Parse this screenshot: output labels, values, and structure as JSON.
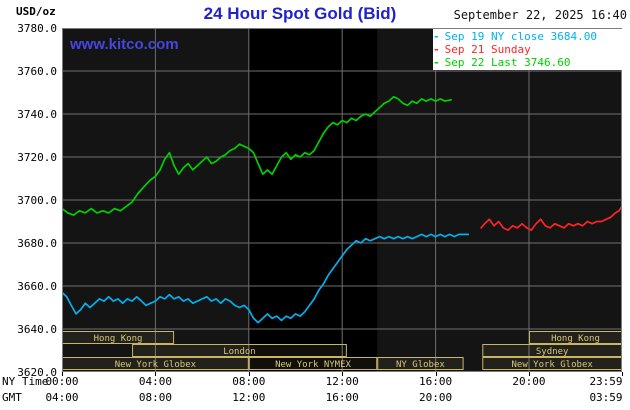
{
  "header": {
    "unit_label": "USD/oz",
    "title": "24 Hour Spot Gold (Bid)",
    "timestamp": "September 22, 2025 16:40"
  },
  "watermark": "www.kitco.com",
  "axes": {
    "ny_time_label": "NY Time",
    "gmt_label": "GMT"
  },
  "colors": {
    "outer_bg": "#ffffff",
    "title_blue": "#2222cc",
    "watermark_blue": "#4646e0",
    "plot_bg": "#141414",
    "nymex_band": "#000000",
    "grid": "#6f6f6f",
    "border": "#7d7d7d",
    "session": "#c9b665",
    "session_text": "#d8c87c",
    "session_fill": "rgba(205,185,110,0.08)",
    "axis_text": "#000000"
  },
  "chart_data": {
    "type": "line",
    "title": "24 Hour Spot Gold (Bid)",
    "ylabel": "USD/oz",
    "x_range_hours": [
      0,
      23.983
    ],
    "y_range": [
      3620,
      3780
    ],
    "y_ticks": [
      3620,
      3640,
      3660,
      3680,
      3700,
      3720,
      3740,
      3760,
      3780
    ],
    "y_tick_labels": [
      "3620.0",
      "3640.0",
      "3660.0",
      "3680.0",
      "3700.0",
      "3720.0",
      "3740.0",
      "3760.0",
      "3780.0"
    ],
    "grid_hours": [
      4,
      8,
      12,
      16,
      20
    ],
    "x_ticks_ny": [
      {
        "h": 0,
        "label": "00:00"
      },
      {
        "h": 4,
        "label": "04:00"
      },
      {
        "h": 8,
        "label": "08:00"
      },
      {
        "h": 12,
        "label": "12:00"
      },
      {
        "h": 16,
        "label": "16:00"
      },
      {
        "h": 20,
        "label": "20:00"
      },
      {
        "h": 23.983,
        "label": "23:59"
      }
    ],
    "x_ticks_gmt": [
      {
        "h": 0,
        "label": "04:00"
      },
      {
        "h": 4,
        "label": "08:00"
      },
      {
        "h": 8,
        "label": "12:00"
      },
      {
        "h": 12,
        "label": "16:00"
      },
      {
        "h": 16,
        "label": "20:00"
      },
      {
        "h": 23.983,
        "label": "03:59"
      }
    ],
    "nymex_shading": {
      "start_hour": 8,
      "end_hour": 13.5
    },
    "legend": [
      {
        "marker": "-",
        "label": "Sep 19 NY close 3684.00",
        "color": "#00b0f0"
      },
      {
        "marker": "-",
        "label": "Sep 21 Sunday",
        "color": "#ff2424"
      },
      {
        "marker": "-",
        "label": "Sep 22 Last 3746.60",
        "color": "#00cf00"
      }
    ],
    "sessions": [
      {
        "row": 0,
        "label": "Hong Kong",
        "start": 0,
        "end": 4.8
      },
      {
        "row": 0,
        "label": "Hong Kong",
        "start": 20,
        "end": 23.983
      },
      {
        "row": 1,
        "label": "London",
        "start": 3,
        "end": 12.2
      },
      {
        "row": 1,
        "label": "Sydney",
        "start": 18,
        "end": 23.983
      },
      {
        "row": 2,
        "label": "New York Globex",
        "start": 0,
        "end": 8
      },
      {
        "row": 2,
        "label": "New York NYMEX",
        "start": 8,
        "end": 13.5
      },
      {
        "row": 2,
        "label": "NY Globex",
        "start": 13.5,
        "end": 17.2
      },
      {
        "row": 2,
        "label": "New York Globex",
        "start": 18,
        "end": 23.983
      }
    ],
    "series": [
      {
        "name": "Sep 19 NY close",
        "color": "#00b0f0",
        "points": [
          [
            0,
            3657
          ],
          [
            0.2,
            3655
          ],
          [
            0.4,
            3651
          ],
          [
            0.6,
            3647
          ],
          [
            0.8,
            3649
          ],
          [
            1,
            3652
          ],
          [
            1.2,
            3650
          ],
          [
            1.4,
            3652
          ],
          [
            1.6,
            3654
          ],
          [
            1.8,
            3653
          ],
          [
            2,
            3655
          ],
          [
            2.2,
            3653
          ],
          [
            2.4,
            3654
          ],
          [
            2.6,
            3652
          ],
          [
            2.8,
            3654
          ],
          [
            3,
            3653
          ],
          [
            3.2,
            3655
          ],
          [
            3.4,
            3653
          ],
          [
            3.6,
            3651
          ],
          [
            3.8,
            3652
          ],
          [
            4,
            3653
          ],
          [
            4.2,
            3655
          ],
          [
            4.4,
            3654
          ],
          [
            4.6,
            3656
          ],
          [
            4.8,
            3654
          ],
          [
            5,
            3655
          ],
          [
            5.2,
            3653
          ],
          [
            5.4,
            3654
          ],
          [
            5.6,
            3652
          ],
          [
            5.8,
            3653
          ],
          [
            6,
            3654
          ],
          [
            6.2,
            3655
          ],
          [
            6.4,
            3653
          ],
          [
            6.6,
            3654
          ],
          [
            6.8,
            3652
          ],
          [
            7,
            3654
          ],
          [
            7.2,
            3653
          ],
          [
            7.4,
            3651
          ],
          [
            7.6,
            3650
          ],
          [
            7.8,
            3651
          ],
          [
            8,
            3649
          ],
          [
            8.2,
            3645
          ],
          [
            8.4,
            3643
          ],
          [
            8.6,
            3645
          ],
          [
            8.8,
            3647
          ],
          [
            9,
            3645
          ],
          [
            9.2,
            3646
          ],
          [
            9.4,
            3644
          ],
          [
            9.6,
            3646
          ],
          [
            9.8,
            3645
          ],
          [
            10,
            3647
          ],
          [
            10.2,
            3646
          ],
          [
            10.4,
            3648
          ],
          [
            10.6,
            3651
          ],
          [
            10.8,
            3654
          ],
          [
            11,
            3658
          ],
          [
            11.2,
            3661
          ],
          [
            11.4,
            3665
          ],
          [
            11.6,
            3668
          ],
          [
            11.8,
            3671
          ],
          [
            12,
            3674
          ],
          [
            12.2,
            3677
          ],
          [
            12.4,
            3679
          ],
          [
            12.6,
            3681
          ],
          [
            12.8,
            3680
          ],
          [
            13,
            3682
          ],
          [
            13.2,
            3681
          ],
          [
            13.4,
            3682
          ],
          [
            13.6,
            3683
          ],
          [
            13.8,
            3682
          ],
          [
            14,
            3683
          ],
          [
            14.2,
            3682
          ],
          [
            14.4,
            3683
          ],
          [
            14.6,
            3682
          ],
          [
            14.8,
            3683
          ],
          [
            15,
            3682
          ],
          [
            15.2,
            3683
          ],
          [
            15.4,
            3684
          ],
          [
            15.6,
            3683
          ],
          [
            15.8,
            3684
          ],
          [
            16,
            3683
          ],
          [
            16.2,
            3684
          ],
          [
            16.4,
            3683
          ],
          [
            16.6,
            3684
          ],
          [
            16.8,
            3683
          ],
          [
            17,
            3684
          ],
          [
            17.2,
            3684
          ],
          [
            17.4,
            3684
          ]
        ]
      },
      {
        "name": "Sep 21 Sunday",
        "color": "#ff2424",
        "points": [
          [
            17.95,
            3687
          ],
          [
            18.1,
            3689
          ],
          [
            18.3,
            3691
          ],
          [
            18.5,
            3688
          ],
          [
            18.7,
            3690
          ],
          [
            18.9,
            3687
          ],
          [
            19.1,
            3686
          ],
          [
            19.3,
            3688
          ],
          [
            19.5,
            3687
          ],
          [
            19.7,
            3689
          ],
          [
            19.9,
            3687
          ],
          [
            20.1,
            3686
          ],
          [
            20.3,
            3689
          ],
          [
            20.5,
            3691
          ],
          [
            20.7,
            3688
          ],
          [
            20.9,
            3687
          ],
          [
            21.1,
            3689
          ],
          [
            21.3,
            3688
          ],
          [
            21.5,
            3687
          ],
          [
            21.7,
            3689
          ],
          [
            21.9,
            3688
          ],
          [
            22.1,
            3689
          ],
          [
            22.3,
            3688
          ],
          [
            22.5,
            3690
          ],
          [
            22.7,
            3689
          ],
          [
            22.9,
            3690
          ],
          [
            23.1,
            3690
          ],
          [
            23.3,
            3691
          ],
          [
            23.5,
            3692
          ],
          [
            23.7,
            3694
          ],
          [
            23.85,
            3695
          ],
          [
            23.98,
            3697
          ]
        ]
      },
      {
        "name": "Sep 22 Last",
        "color": "#00cf00",
        "points": [
          [
            0,
            3696
          ],
          [
            0.25,
            3694
          ],
          [
            0.5,
            3693
          ],
          [
            0.75,
            3695
          ],
          [
            1,
            3694
          ],
          [
            1.25,
            3696
          ],
          [
            1.5,
            3694
          ],
          [
            1.75,
            3695
          ],
          [
            2,
            3694
          ],
          [
            2.25,
            3696
          ],
          [
            2.5,
            3695
          ],
          [
            2.75,
            3697
          ],
          [
            3,
            3699
          ],
          [
            3.25,
            3703
          ],
          [
            3.5,
            3706
          ],
          [
            3.75,
            3709
          ],
          [
            4,
            3711
          ],
          [
            4.2,
            3714
          ],
          [
            4.4,
            3719
          ],
          [
            4.6,
            3722
          ],
          [
            4.8,
            3716
          ],
          [
            5,
            3712
          ],
          [
            5.2,
            3715
          ],
          [
            5.4,
            3717
          ],
          [
            5.6,
            3714
          ],
          [
            5.8,
            3716
          ],
          [
            6,
            3718
          ],
          [
            6.2,
            3720
          ],
          [
            6.4,
            3717
          ],
          [
            6.6,
            3718
          ],
          [
            6.8,
            3720
          ],
          [
            7,
            3721
          ],
          [
            7.2,
            3723
          ],
          [
            7.4,
            3724
          ],
          [
            7.6,
            3726
          ],
          [
            7.8,
            3725
          ],
          [
            8,
            3724
          ],
          [
            8.2,
            3722
          ],
          [
            8.4,
            3717
          ],
          [
            8.6,
            3712
          ],
          [
            8.8,
            3714
          ],
          [
            9,
            3712
          ],
          [
            9.2,
            3716
          ],
          [
            9.4,
            3720
          ],
          [
            9.6,
            3722
          ],
          [
            9.8,
            3719
          ],
          [
            10,
            3721
          ],
          [
            10.2,
            3720
          ],
          [
            10.4,
            3722
          ],
          [
            10.6,
            3721
          ],
          [
            10.8,
            3723
          ],
          [
            11,
            3727
          ],
          [
            11.2,
            3731
          ],
          [
            11.4,
            3734
          ],
          [
            11.6,
            3736
          ],
          [
            11.8,
            3735
          ],
          [
            12,
            3737
          ],
          [
            12.2,
            3736
          ],
          [
            12.4,
            3738
          ],
          [
            12.6,
            3737
          ],
          [
            12.8,
            3739
          ],
          [
            13,
            3740
          ],
          [
            13.2,
            3739
          ],
          [
            13.4,
            3741
          ],
          [
            13.6,
            3743
          ],
          [
            13.8,
            3745
          ],
          [
            14,
            3746
          ],
          [
            14.2,
            3748
          ],
          [
            14.4,
            3747
          ],
          [
            14.6,
            3745
          ],
          [
            14.8,
            3744
          ],
          [
            15,
            3746
          ],
          [
            15.2,
            3745
          ],
          [
            15.4,
            3747
          ],
          [
            15.6,
            3746
          ],
          [
            15.8,
            3747
          ],
          [
            16,
            3746
          ],
          [
            16.2,
            3747
          ],
          [
            16.4,
            3746
          ],
          [
            16.67,
            3746.6
          ]
        ]
      }
    ]
  }
}
